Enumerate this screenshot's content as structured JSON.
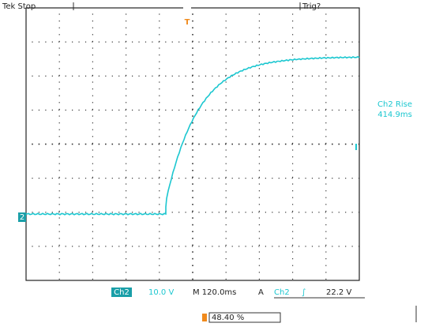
{
  "header": {
    "status": "Tek Stop",
    "trigger_state": "Trig?"
  },
  "markers": {
    "trigger": "T",
    "channel": "2"
  },
  "measurement": {
    "label": "Ch2 Rise",
    "value": "414.9ms"
  },
  "footer": {
    "channel": "Ch2",
    "volts_per_div": "10.0 V",
    "time_per_div": "M 120.0ms",
    "trigger_source_prefix": "A",
    "trigger_source": "Ch2",
    "trigger_slope": "∫",
    "trigger_level": "22.2 V",
    "trigger_position": "48.40 %"
  }
}
